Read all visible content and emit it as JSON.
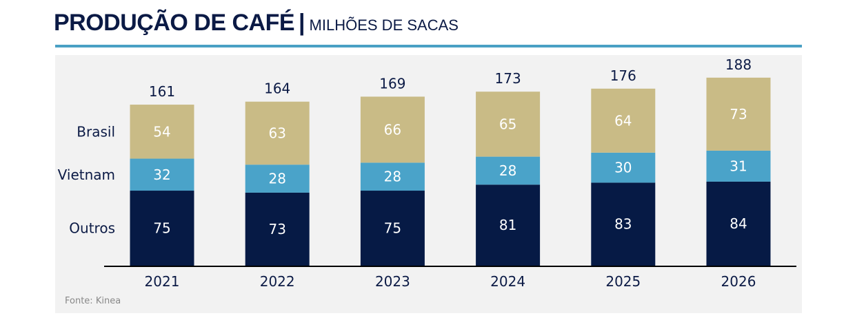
{
  "title": {
    "main": "PRODUÇÃO DE CAFÉ",
    "separator": "|",
    "subtitle": "MILHÕES DE SACAS"
  },
  "source": "Fonte: Kinea",
  "chart_data": {
    "type": "bar",
    "stacked": true,
    "title": "PRODUÇÃO DE CAFÉ | MILHÕES DE SACAS",
    "categories": [
      "2021",
      "2022",
      "2023",
      "2024",
      "2025",
      "2026"
    ],
    "series": [
      {
        "name": "Outros",
        "color": "#061a45",
        "values": [
          75,
          73,
          75,
          81,
          83,
          84
        ]
      },
      {
        "name": "Vietnam",
        "color": "#4aa3c9",
        "values": [
          32,
          28,
          28,
          28,
          30,
          31
        ]
      },
      {
        "name": "Brasil",
        "color": "#c9bb86",
        "values": [
          54,
          63,
          66,
          65,
          64,
          73
        ]
      }
    ],
    "totals": [
      161,
      164,
      169,
      173,
      176,
      188
    ],
    "legend_placement": "left",
    "ylim": [
      0,
      190
    ],
    "grid": false
  }
}
